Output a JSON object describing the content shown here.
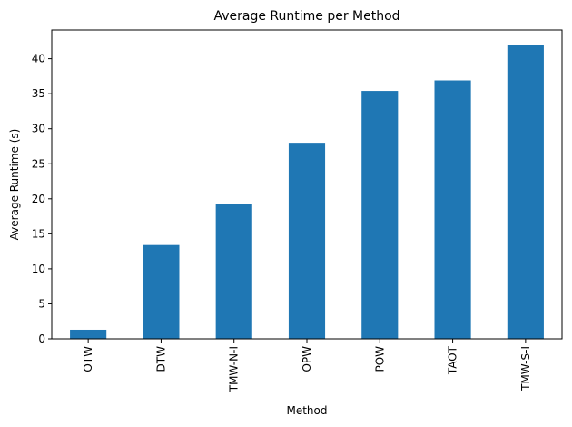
{
  "chart_data": {
    "type": "bar",
    "title": "Average Runtime per Method",
    "xlabel": "Method",
    "ylabel": "Average Runtime (s)",
    "categories": [
      "OTW",
      "DTW",
      "TMW-N-I",
      "OPW",
      "POW",
      "TAOT",
      "TMW-S-I"
    ],
    "values": [
      1.3,
      13.4,
      19.2,
      28.0,
      35.4,
      36.9,
      42.0
    ],
    "ylim": [
      0,
      44.1
    ],
    "yticks": [
      0,
      5,
      10,
      15,
      20,
      25,
      30,
      35,
      40
    ],
    "bar_color": "#1f77b4",
    "grid": false,
    "legend": "none"
  }
}
